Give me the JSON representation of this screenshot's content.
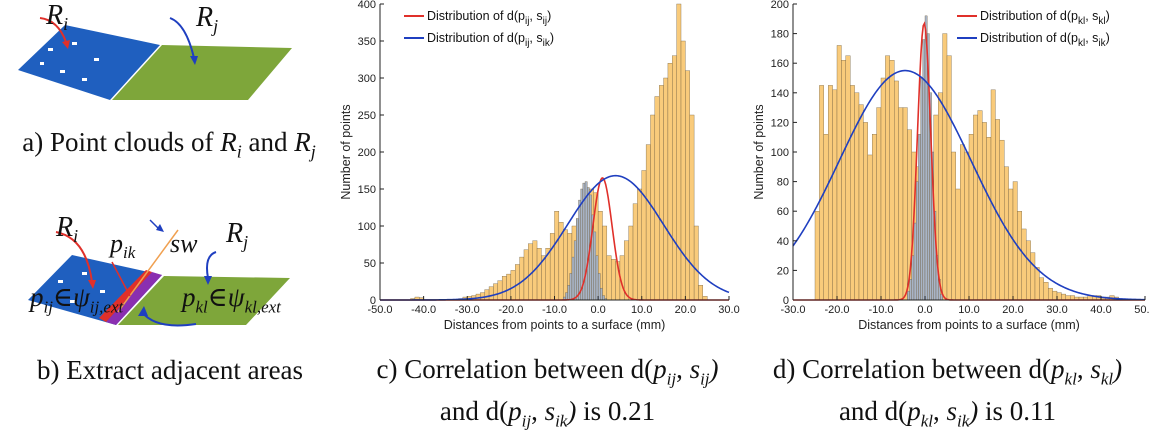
{
  "figure_a": {
    "label_ri": "R",
    "label_ri_sub": "i",
    "label_rj": "R",
    "label_rj_sub": "j",
    "caption": "a) Point clouds of Ri and Rj",
    "colors": {
      "blue_surface": "#1f5fbf",
      "green_surface": "#7ea63a",
      "red_arrow": "#e0302a",
      "blue_arrow": "#1f3fc0"
    }
  },
  "figure_b": {
    "label_ri": "R",
    "label_ri_sub": "i",
    "label_rj": "R",
    "label_rj_sub": "j",
    "label_pik": "p",
    "label_pik_sub": "ik",
    "label_sw": "sw",
    "label_pij": "pij ∈ ψij,ext",
    "label_pkl": "pkl ∈ ψkl,ext",
    "caption": "b) Extract adjacent areas",
    "colors": {
      "boundary_band": "#8a2fb0",
      "surface_line": "#f0a050"
    }
  },
  "chart_c": {
    "caption_line1": "c) Correlation between d(pij, sij)",
    "caption_line2": "and d(pij, sik) is 0.21"
  },
  "chart_d": {
    "caption_line1": "d) Correlation between d(pkl, skl)",
    "caption_line2": "and d(pkl, sik) is 0.11"
  },
  "chart_data": [
    {
      "type": "bar",
      "title": "",
      "xlabel": "Distances from points to a surface (mm)",
      "ylabel": "Number of points",
      "xlim": [
        -50,
        30
      ],
      "ylim": [
        0,
        400
      ],
      "xticks": [
        "-50.0",
        "-40.0",
        "-30.0",
        "-20.0",
        "-10.0",
        "0.0",
        "10.0",
        "20.0",
        "30.0"
      ],
      "yticks": [
        "0",
        "50",
        "100",
        "150",
        "200",
        "250",
        "300",
        "350",
        "400"
      ],
      "legend": [
        "Distribution of d(pij, sij)",
        "Distribution of d(pij, sik)"
      ],
      "legend_position": "top-left",
      "histograms": [
        {
          "name": "broad",
          "color": "#f9cb7b",
          "bin_start": -43,
          "bin_width": 1,
          "values": [
            2,
            4,
            3,
            0,
            0,
            0,
            0,
            0,
            0,
            0,
            0,
            2,
            4,
            5,
            6,
            8,
            10,
            14,
            18,
            22,
            26,
            32,
            35,
            40,
            48,
            58,
            68,
            76,
            80,
            70,
            60,
            70,
            90,
            120,
            105,
            95,
            90,
            100,
            110,
            120,
            130,
            150,
            145,
            120,
            100,
            60,
            55,
            52,
            60,
            80,
            100,
            130,
            150,
            175,
            210,
            250,
            275,
            290,
            300,
            320,
            330,
            400,
            350,
            310,
            250,
            100,
            20,
            5
          ]
        },
        {
          "name": "narrow",
          "color": "#a8b4c6",
          "bin_start": -9,
          "bin_width": 0.5,
          "values": [
            0,
            0,
            4,
            10,
            20,
            36,
            58,
            80,
            110,
            135,
            150,
            158,
            160,
            152,
            142,
            115,
            92,
            60,
            36,
            16,
            6,
            2
          ]
        }
      ],
      "curves": [
        {
          "name": "red",
          "color": "#e0302a",
          "mean": 1.0,
          "peak": 165,
          "sd": 2.2
        },
        {
          "name": "blue",
          "color": "#1f3fc0",
          "mean": 4.0,
          "peak": 168,
          "sd": 11.0
        }
      ]
    },
    {
      "type": "bar",
      "title": "",
      "xlabel": "Distances from points to a surface (mm)",
      "ylabel": "Number of points",
      "xlim": [
        -30,
        50
      ],
      "ylim": [
        0,
        200
      ],
      "xticks": [
        "-30.0",
        "-20.0",
        "-10.0",
        "0.0",
        "10.0",
        "20.0",
        "30.0",
        "40.0",
        "50.0"
      ],
      "yticks": [
        "0",
        "20",
        "40",
        "60",
        "80",
        "100",
        "120",
        "140",
        "160",
        "180",
        "200"
      ],
      "legend": [
        "Distribution of d(pkl, skl)",
        "Distribution of d(pkl, sik)"
      ],
      "legend_position": "top-right",
      "histograms": [
        {
          "name": "broad",
          "color": "#f9cb7b",
          "bin_start": -30,
          "bin_width": 1,
          "values": [
            0,
            0,
            0,
            0,
            0,
            60,
            145,
            112,
            145,
            142,
            172,
            162,
            165,
            145,
            140,
            132,
            120,
            98,
            112,
            130,
            150,
            165,
            162,
            148,
            130,
            130,
            115,
            100,
            90,
            90,
            112,
            95,
            125,
            140,
            180,
            165,
            100,
            75,
            105,
            100,
            112,
            125,
            128,
            120,
            110,
            142,
            122,
            108,
            90,
            75,
            80,
            60,
            48,
            40,
            32,
            22,
            15,
            12,
            8,
            6,
            5,
            4,
            3,
            3,
            2,
            2,
            2,
            3,
            3,
            3,
            2,
            2,
            3,
            2,
            1
          ]
        },
        {
          "name": "narrow",
          "color": "#a8b4c6",
          "bin_start": -5,
          "bin_width": 0.5,
          "values": [
            0,
            0,
            6,
            14,
            30,
            52,
            80,
            112,
            150,
            176,
            192,
            180,
            140,
            100,
            60,
            30,
            14,
            4,
            0
          ]
        }
      ],
      "curves": [
        {
          "name": "red",
          "color": "#e0302a",
          "mean": -0.2,
          "peak": 187,
          "sd": 1.5
        },
        {
          "name": "blue",
          "color": "#1f3fc0",
          "mean": -4.5,
          "peak": 155,
          "sd": 15.0
        }
      ]
    }
  ]
}
